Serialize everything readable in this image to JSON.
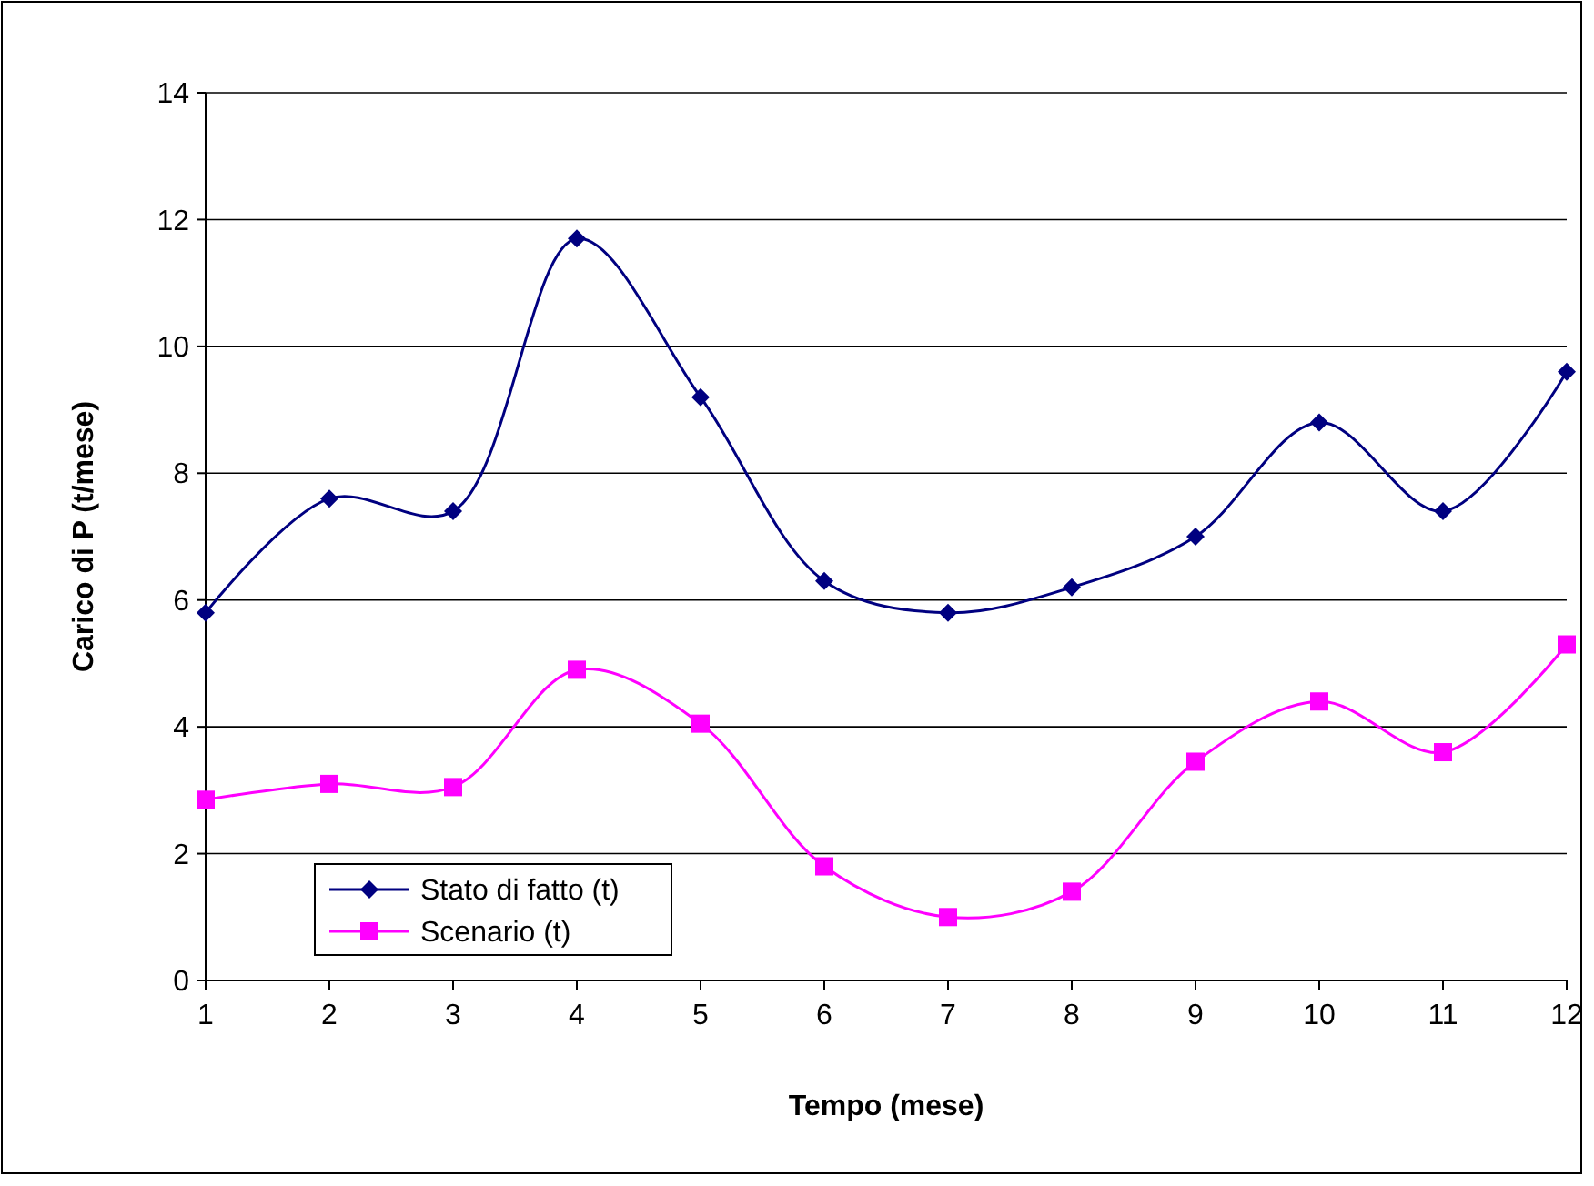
{
  "chart_data": {
    "type": "line",
    "xlabel": "Tempo (mese)",
    "ylabel": "Carico di P (t/mese)",
    "x": [
      1,
      2,
      3,
      4,
      5,
      6,
      7,
      8,
      9,
      10,
      11,
      12
    ],
    "xlim": [
      1,
      12
    ],
    "xticks": [
      1,
      2,
      3,
      4,
      5,
      6,
      7,
      8,
      9,
      10,
      11,
      12
    ],
    "ylim": [
      0,
      14
    ],
    "yticks": [
      0,
      2,
      4,
      6,
      8,
      10,
      12,
      14
    ],
    "grid": "y",
    "legend": "bottom left",
    "series": [
      {
        "name": "Stato di fatto (t)",
        "color": "#000080",
        "marker": "diamond",
        "values": [
          5.8,
          7.6,
          7.4,
          11.7,
          9.2,
          6.3,
          5.8,
          6.2,
          7.0,
          8.8,
          7.4,
          9.6
        ]
      },
      {
        "name": "Scenario (t)",
        "color": "#ff00ff",
        "marker": "square",
        "values": [
          2.85,
          3.1,
          3.05,
          4.9,
          4.05,
          1.8,
          1.0,
          1.4,
          3.45,
          4.4,
          3.6,
          5.3
        ]
      }
    ]
  }
}
